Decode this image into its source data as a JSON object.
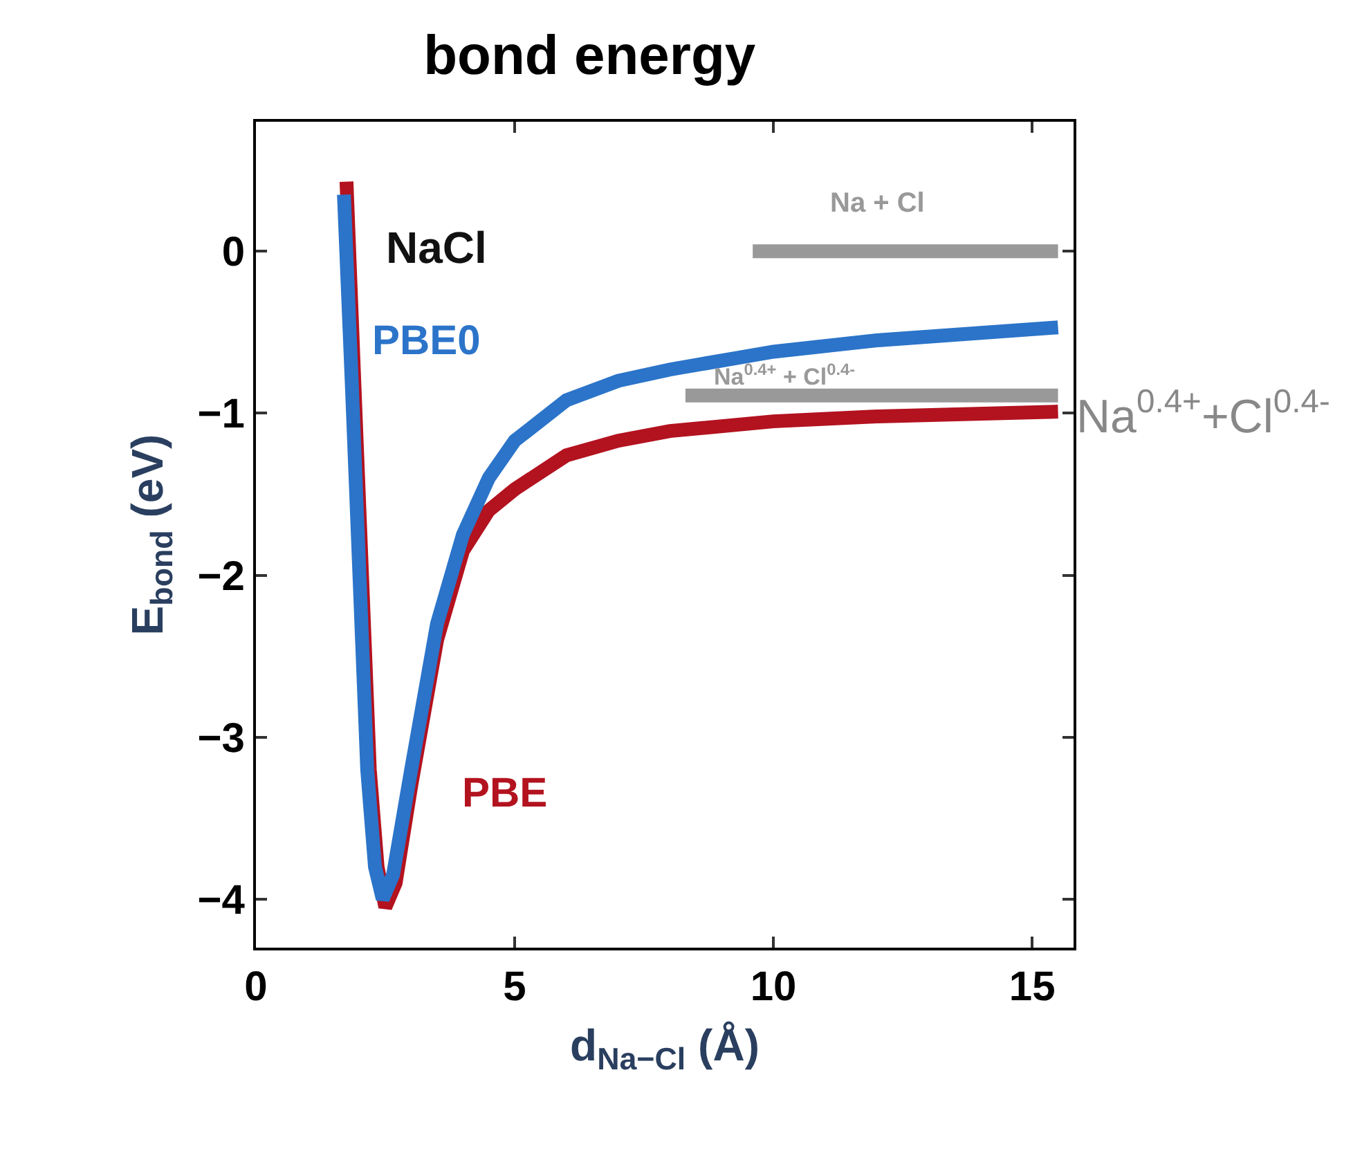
{
  "chart_data": {
    "type": "line",
    "title": "bond energy",
    "xlabel": "d$_{Na−Cl}$ (Å)",
    "ylabel": "E$_{bond}$ (eV)",
    "xlim": [
      0,
      15.8
    ],
    "ylim": [
      -4.3,
      0.8
    ],
    "xticks": [
      0,
      5,
      10,
      15
    ],
    "yticks": [
      {
        "value": -4,
        "label": "−4"
      },
      {
        "value": -3,
        "label": "−3"
      },
      {
        "value": -2,
        "label": "−2"
      },
      {
        "value": -1,
        "label": "−1"
      },
      0
    ],
    "legend": false,
    "marker": "none",
    "line_style": "solid",
    "series": [
      {
        "name": "Na + Cl",
        "color": "#999999",
        "x": [
          9.6,
          15.5
        ],
        "values": [
          0,
          0
        ]
      },
      {
        "name": "Na$^{0.4+}$ + Cl$^{0.4-}$",
        "color": "#999999",
        "x": [
          8.3,
          15.5
        ],
        "values": [
          -0.89,
          -0.89
        ]
      },
      {
        "name": "PBE",
        "color": "#b3121f",
        "x": [
          1.75,
          1.9,
          2.05,
          2.2,
          2.35,
          2.5,
          2.7,
          3.0,
          3.5,
          4.0,
          4.5,
          5.0,
          6.0,
          7.0,
          8.0,
          10.0,
          12.0,
          15.5
        ],
        "values": [
          0.43,
          -0.8,
          -2.0,
          -3.2,
          -3.8,
          -4.05,
          -3.9,
          -3.3,
          -2.4,
          -1.85,
          -1.6,
          -1.47,
          -1.26,
          -1.17,
          -1.11,
          -1.05,
          -1.02,
          -0.99
        ]
      },
      {
        "name": "PBE0",
        "color": "#2b74c9",
        "x": [
          1.7,
          1.85,
          2.0,
          2.15,
          2.3,
          2.45,
          2.65,
          3.0,
          3.5,
          4.0,
          4.5,
          5.0,
          6.0,
          7.0,
          8.0,
          10.0,
          12.0,
          15.5
        ],
        "values": [
          0.35,
          -0.8,
          -2.0,
          -3.2,
          -3.8,
          -4.0,
          -3.85,
          -3.2,
          -2.3,
          -1.75,
          -1.4,
          -1.17,
          -0.92,
          -0.8,
          -0.73,
          -0.62,
          -0.55,
          -0.47
        ]
      }
    ],
    "annotations": [
      "NaCl",
      "Na$^{0.4+}$+Cl$^{0.4-}$"
    ]
  }
}
